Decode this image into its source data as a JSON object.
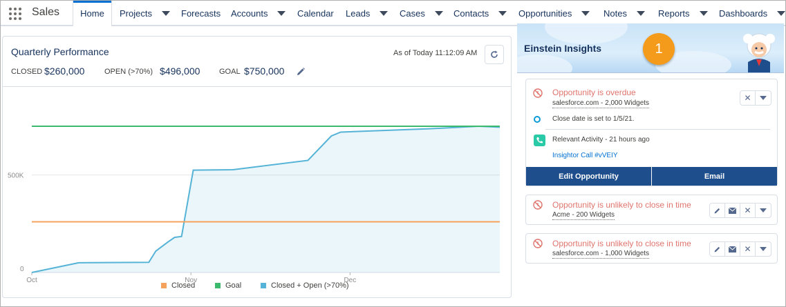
{
  "app": {
    "name": "Sales"
  },
  "nav": {
    "tabs": [
      {
        "label": "Home",
        "active": true,
        "chevron": false
      },
      {
        "label": "Projects",
        "chevron": true
      },
      {
        "label": "Forecasts",
        "chevron": false
      },
      {
        "label": "Accounts",
        "chevron": true
      },
      {
        "label": "Calendar",
        "chevron": false
      },
      {
        "label": "Leads",
        "chevron": true
      },
      {
        "label": "Cases",
        "chevron": true
      },
      {
        "label": "Contacts",
        "chevron": true
      },
      {
        "label": "Opportunities",
        "chevron": true
      },
      {
        "label": "Notes",
        "chevron": true
      },
      {
        "label": "Reports",
        "chevron": true
      },
      {
        "label": "Dashboards",
        "chevron": true
      }
    ]
  },
  "performance": {
    "title": "Quarterly Performance",
    "as_of": "As of Today 11:12:09 AM",
    "closed_label": "CLOSED",
    "closed_value": "$260,000",
    "open_label": "OPEN (>70%)",
    "open_value": "$496,000",
    "goal_label": "GOAL",
    "goal_value": "$750,000"
  },
  "chart_data": {
    "type": "area",
    "x_categories": [
      "Oct",
      "Nov",
      "Dec"
    ],
    "y_ticks": [
      "0",
      "500K"
    ],
    "ylim": [
      0,
      750000
    ],
    "series": [
      {
        "name": "Closed",
        "color": "#f5a25d",
        "type": "line",
        "values_constant": 260000
      },
      {
        "name": "Goal",
        "color": "#3bba6e",
        "type": "line",
        "values_constant": 750000
      },
      {
        "name": "Closed + Open (>70%)",
        "color": "#54b3d6",
        "type": "area",
        "points": [
          [
            0,
            0
          ],
          [
            0.1,
            50000
          ],
          [
            0.25,
            52000
          ],
          [
            0.265,
            110000
          ],
          [
            0.29,
            155000
          ],
          [
            0.305,
            180000
          ],
          [
            0.32,
            185000
          ],
          [
            0.345,
            525000
          ],
          [
            0.43,
            527000
          ],
          [
            0.59,
            575000
          ],
          [
            0.64,
            700000
          ],
          [
            0.66,
            720000
          ],
          [
            0.85,
            737000
          ],
          [
            0.955,
            750000
          ],
          [
            1.0,
            745000
          ]
        ]
      }
    ],
    "legend": "bottom",
    "grid": true
  },
  "einstein": {
    "title": "Einstein Insights",
    "badge_count": "1",
    "card1": {
      "title": "Opportunity is overdue",
      "subtitle": "salesforce.com - 2,000 Widgets",
      "detail1": "Close date is set to 1/5/21.",
      "detail2": "Relevant Activity - 21 hours ago",
      "link": "Insightor Call #vVEIY",
      "action1": "Edit Opportunity",
      "action2": "Email"
    },
    "card2": {
      "title": "Opportunity is unlikely to close in time",
      "subtitle": "Acme - 200 Widgets"
    },
    "card3": {
      "title": "Opportunity is unlikely to close in time",
      "subtitle": "salesforce.com - 1,000 Widgets"
    }
  }
}
